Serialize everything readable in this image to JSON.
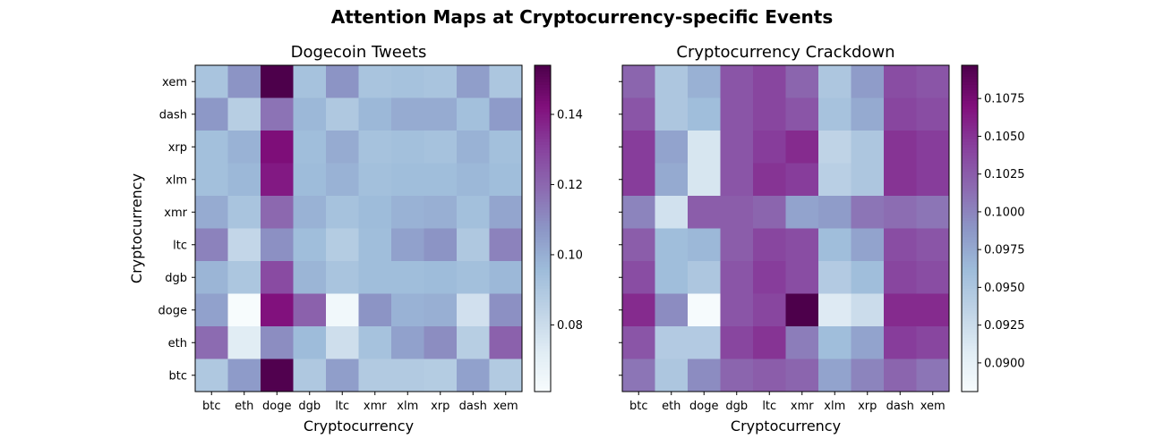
{
  "suptitle": "Attention Maps at Cryptocurrency-specific Events",
  "chart_data": [
    {
      "type": "heatmap",
      "title": "Dogecoin Tweets",
      "xlabel": "Cryptocurrency",
      "ylabel": "Cryptocurrency",
      "x_categories": [
        "btc",
        "eth",
        "doge",
        "dgb",
        "ltc",
        "xmr",
        "xlm",
        "xrp",
        "dash",
        "xem"
      ],
      "y_categories_top_to_bottom": [
        "xem",
        "dash",
        "xrp",
        "xlm",
        "xmr",
        "ltc",
        "dgb",
        "doge",
        "eth",
        "btc"
      ],
      "colormap": "BuPu",
      "vmin": 0.061,
      "vmax": 0.154,
      "colorbar_ticks": [
        0.08,
        0.1,
        0.12,
        0.14
      ],
      "colorbar_tick_labels": [
        "0.08",
        "0.10",
        "0.12",
        "0.14"
      ],
      "values": [
        [
          0.092,
          0.108,
          0.154,
          0.093,
          0.108,
          0.092,
          0.093,
          0.092,
          0.105,
          0.091
        ],
        [
          0.107,
          0.087,
          0.117,
          0.097,
          0.09,
          0.097,
          0.101,
          0.101,
          0.094,
          0.106
        ],
        [
          0.094,
          0.099,
          0.143,
          0.095,
          0.101,
          0.093,
          0.094,
          0.093,
          0.099,
          0.094
        ],
        [
          0.094,
          0.097,
          0.14,
          0.096,
          0.099,
          0.094,
          0.095,
          0.095,
          0.097,
          0.095
        ],
        [
          0.101,
          0.092,
          0.12,
          0.099,
          0.093,
          0.096,
          0.099,
          0.1,
          0.094,
          0.103
        ],
        [
          0.113,
          0.083,
          0.109,
          0.095,
          0.088,
          0.095,
          0.104,
          0.108,
          0.09,
          0.113
        ],
        [
          0.098,
          0.091,
          0.128,
          0.098,
          0.092,
          0.095,
          0.095,
          0.096,
          0.094,
          0.097
        ],
        [
          0.104,
          0.061,
          0.142,
          0.122,
          0.064,
          0.108,
          0.099,
          0.1,
          0.078,
          0.109
        ],
        [
          0.119,
          0.072,
          0.11,
          0.096,
          0.079,
          0.093,
          0.104,
          0.11,
          0.087,
          0.122
        ],
        [
          0.09,
          0.106,
          0.153,
          0.09,
          0.105,
          0.089,
          0.089,
          0.088,
          0.104,
          0.089
        ]
      ]
    },
    {
      "type": "heatmap",
      "title": "Cryptocurrency Crackdown",
      "xlabel": "Cryptocurrency",
      "ylabel": "",
      "x_categories": [
        "btc",
        "eth",
        "doge",
        "dgb",
        "ltc",
        "xmr",
        "xlm",
        "xrp",
        "dash",
        "xem"
      ],
      "y_categories_top_to_bottom": [
        "xem",
        "dash",
        "xrp",
        "xlm",
        "xmr",
        "ltc",
        "dgb",
        "doge",
        "eth",
        "btc"
      ],
      "colormap": "BuPu",
      "vmin": 0.0881,
      "vmax": 0.1097,
      "colorbar_ticks": [
        0.09,
        0.0925,
        0.095,
        0.0975,
        0.1,
        0.1025,
        0.105,
        0.1075
      ],
      "colorbar_tick_labels": [
        "0.0900",
        "0.0925",
        "0.0950",
        "0.0975",
        "0.1000",
        "0.1025",
        "0.1050",
        "0.1075"
      ],
      "values": [
        [
          0.102,
          0.095,
          0.097,
          0.103,
          0.104,
          0.102,
          0.095,
          0.0985,
          0.1035,
          0.103
        ],
        [
          0.103,
          0.095,
          0.096,
          0.103,
          0.104,
          0.103,
          0.0955,
          0.0975,
          0.104,
          0.1035
        ],
        [
          0.1045,
          0.098,
          0.0915,
          0.103,
          0.1045,
          0.1055,
          0.0935,
          0.095,
          0.105,
          0.1045
        ],
        [
          0.1045,
          0.0975,
          0.0915,
          0.103,
          0.105,
          0.1045,
          0.094,
          0.095,
          0.105,
          0.1045
        ],
        [
          0.1,
          0.092,
          0.1025,
          0.1025,
          0.102,
          0.098,
          0.0985,
          0.101,
          0.1015,
          0.101
        ],
        [
          0.1025,
          0.096,
          0.0965,
          0.1025,
          0.104,
          0.1035,
          0.096,
          0.098,
          0.1035,
          0.103
        ],
        [
          0.1035,
          0.096,
          0.095,
          0.103,
          0.1045,
          0.1035,
          0.0945,
          0.096,
          0.104,
          0.1035
        ],
        [
          0.1055,
          0.0995,
          0.0882,
          0.103,
          0.104,
          0.1097,
          0.091,
          0.0925,
          0.1055,
          0.1055
        ],
        [
          0.103,
          0.0945,
          0.0945,
          0.104,
          0.105,
          0.1005,
          0.096,
          0.098,
          0.1045,
          0.104
        ],
        [
          0.101,
          0.095,
          0.0995,
          0.102,
          0.1025,
          0.102,
          0.098,
          0.1,
          0.102,
          0.101
        ]
      ]
    }
  ]
}
